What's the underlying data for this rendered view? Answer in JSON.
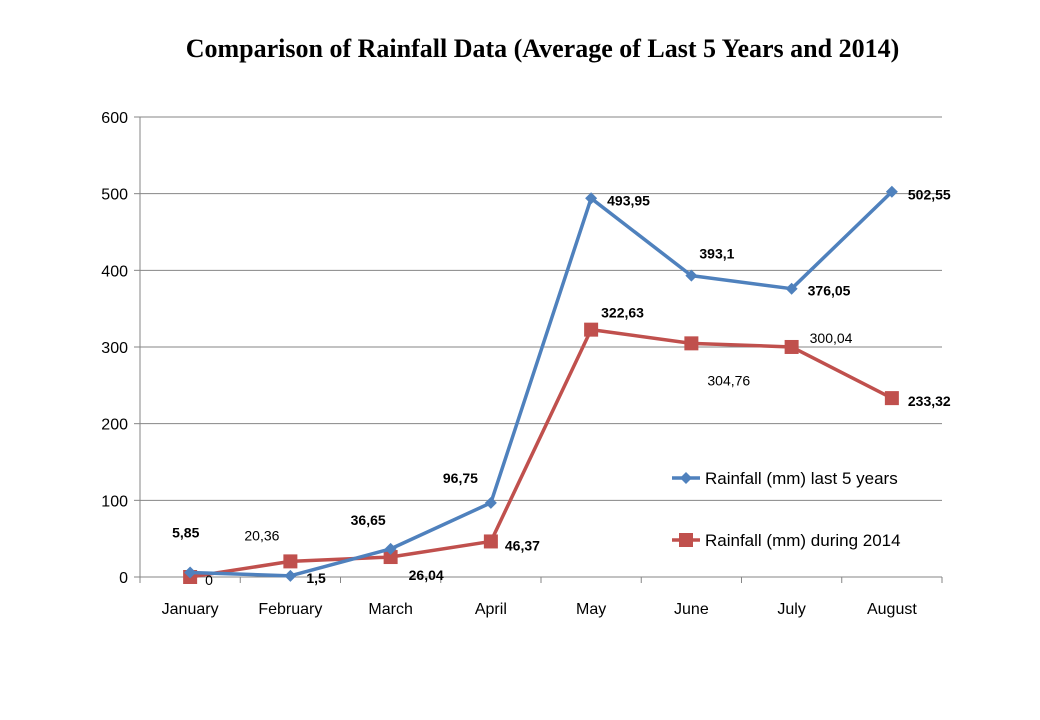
{
  "chart_data": {
    "type": "line",
    "title": "Comparison of Rainfall Data (Average of Last 5 Years and 2014)",
    "xlabel": "",
    "ylabel": "",
    "categories": [
      "January",
      "February",
      "March",
      "April",
      "May",
      "June",
      "July",
      "August"
    ],
    "ylim": [
      0,
      600
    ],
    "yticks": [
      "0",
      "100",
      "200",
      "300",
      "400",
      "500",
      "600"
    ],
    "grid": true,
    "legend_position": "right",
    "series": [
      {
        "name": "Rainfall (mm) last 5 years",
        "color": "#4F81BD",
        "marker": "diamond",
        "values": [
          5.85,
          1.5,
          36.65,
          96.75,
          493.95,
          393.1,
          376.05,
          502.55
        ],
        "labels": [
          "5,85",
          "1,5",
          "36,65",
          "96,75",
          "493,95",
          "393,1",
          "376,05",
          "502,55"
        ]
      },
      {
        "name": "Rainfall (mm) during  2014",
        "color": "#C0504D",
        "marker": "square",
        "values": [
          0,
          20.36,
          26.04,
          46.37,
          322.63,
          304.76,
          300.04,
          233.32
        ],
        "labels": [
          "0",
          "20,36",
          "26,04",
          "46,37",
          "322,63",
          "304,76",
          "300,04",
          "233,32"
        ]
      }
    ]
  }
}
